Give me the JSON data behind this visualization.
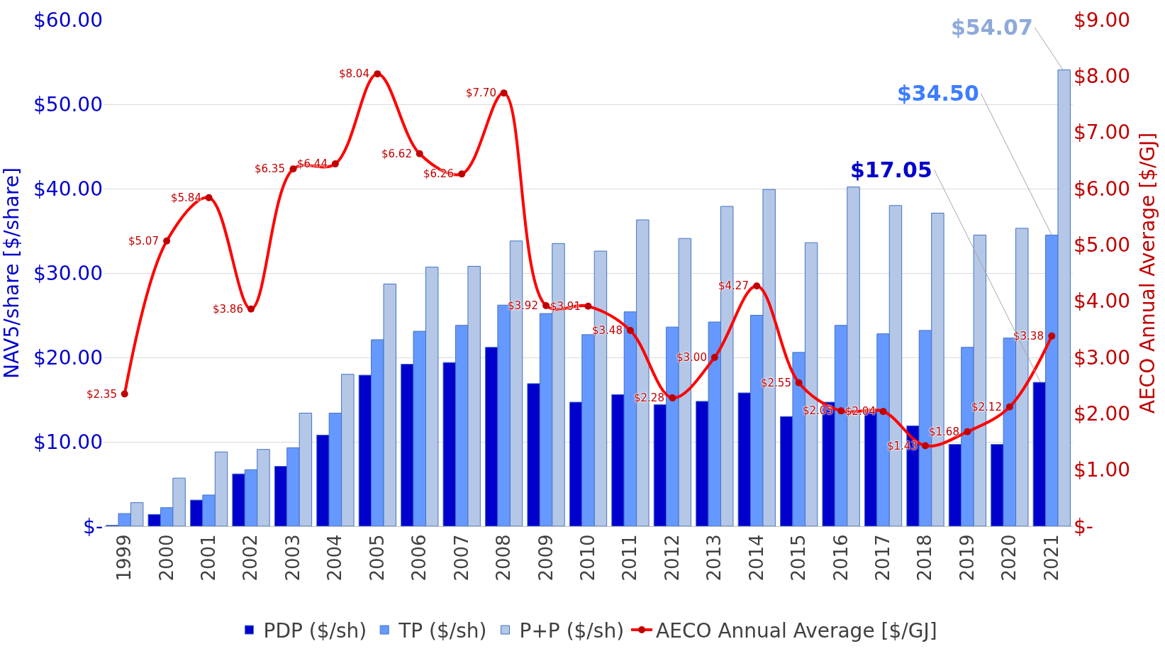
{
  "chart_data": {
    "type": "bar",
    "ylabel": "NAV5/share [$/share]",
    "y2label": "AECO Annual Average [$/GJ]",
    "categories": [
      "1999",
      "2000",
      "2001",
      "2002",
      "2003",
      "2004",
      "2005",
      "2006",
      "2007",
      "2008",
      "2009",
      "2010",
      "2011",
      "2012",
      "2013",
      "2014",
      "2015",
      "2016",
      "2017",
      "2018",
      "2019",
      "2020",
      "2021"
    ],
    "series": [
      {
        "name": "PDP ($/sh)",
        "color": "#0000cc",
        "values": [
          0.1,
          1.4,
          3.1,
          6.2,
          7.1,
          10.8,
          17.9,
          19.2,
          19.4,
          21.2,
          16.9,
          14.7,
          15.6,
          14.4,
          14.8,
          15.8,
          13.0,
          14.7,
          13.7,
          11.9,
          9.7,
          9.7,
          17.05
        ],
        "value_labels": [
          null,
          null,
          null,
          null,
          null,
          null,
          null,
          null,
          null,
          null,
          null,
          null,
          null,
          null,
          null,
          null,
          null,
          null,
          null,
          null,
          null,
          null,
          "$17.05"
        ]
      },
      {
        "name": "TP ($/sh)",
        "color": "#6699ff",
        "values": [
          1.5,
          2.2,
          3.7,
          6.7,
          9.3,
          13.4,
          22.1,
          23.1,
          23.8,
          26.2,
          25.2,
          22.7,
          25.4,
          23.6,
          24.2,
          25.0,
          20.6,
          23.8,
          22.8,
          23.2,
          21.2,
          22.3,
          34.5
        ],
        "value_labels": [
          null,
          null,
          null,
          null,
          null,
          null,
          null,
          null,
          null,
          null,
          null,
          null,
          null,
          null,
          null,
          null,
          null,
          null,
          null,
          null,
          null,
          null,
          "$34.50"
        ]
      },
      {
        "name": "P+P ($/sh)",
        "color": "#b4c7e7",
        "values": [
          2.8,
          5.7,
          8.8,
          9.1,
          13.4,
          18.0,
          28.7,
          30.7,
          30.8,
          33.8,
          33.5,
          32.6,
          36.3,
          34.1,
          37.9,
          39.9,
          33.6,
          40.2,
          38.0,
          37.1,
          34.5,
          35.3,
          54.07
        ],
        "value_labels": [
          null,
          null,
          null,
          null,
          null,
          null,
          null,
          null,
          null,
          null,
          null,
          null,
          null,
          null,
          null,
          null,
          null,
          null,
          null,
          null,
          null,
          null,
          "$54.07"
        ]
      },
      {
        "name": "AECO Annual Average [$/GJ]",
        "type": "line",
        "axis": "y2",
        "color": "#ff0000",
        "marker": "circle",
        "values": [
          2.35,
          5.07,
          5.84,
          3.86,
          6.35,
          6.44,
          8.04,
          6.62,
          6.26,
          7.7,
          3.92,
          3.91,
          3.48,
          2.28,
          3.0,
          4.27,
          2.55,
          2.05,
          2.04,
          1.43,
          1.68,
          2.12,
          3.38
        ],
        "value_labels": [
          "$2.35",
          "$5.07",
          "$5.84",
          "$3.86",
          "$6.35",
          "$6.44",
          "$8.04",
          "$6.62",
          "$6.26",
          "$7.70",
          "$3.92",
          "$3.91",
          "$3.48",
          "$2.28",
          "$3.00",
          "$4.27",
          "$2.55",
          "$2.05",
          "$2.04",
          "$1.43",
          "$1.68",
          "$2.12",
          "$3.38"
        ]
      }
    ],
    "ylim": [
      0,
      60
    ],
    "yticks": [
      {
        "value": 0,
        "label": "$-"
      },
      {
        "value": 10,
        "label": "$10.00"
      },
      {
        "value": 20,
        "label": "$20.00"
      },
      {
        "value": 30,
        "label": "$30.00"
      },
      {
        "value": 40,
        "label": "$40.00"
      },
      {
        "value": 50,
        "label": "$50.00"
      },
      {
        "value": 60,
        "label": "$60.00"
      }
    ],
    "y2lim": [
      0,
      9
    ],
    "y2ticks": [
      {
        "value": 0,
        "label": "$-"
      },
      {
        "value": 1,
        "label": "$1.00"
      },
      {
        "value": 2,
        "label": "$2.00"
      },
      {
        "value": 3,
        "label": "$3.00"
      },
      {
        "value": 4,
        "label": "$4.00"
      },
      {
        "value": 5,
        "label": "$5.00"
      },
      {
        "value": 6,
        "label": "$6.00"
      },
      {
        "value": 7,
        "label": "$7.00"
      },
      {
        "value": 8,
        "label": "$8.00"
      },
      {
        "value": 9,
        "label": "$9.00"
      }
    ],
    "grid": "y",
    "legend": "bottom"
  }
}
